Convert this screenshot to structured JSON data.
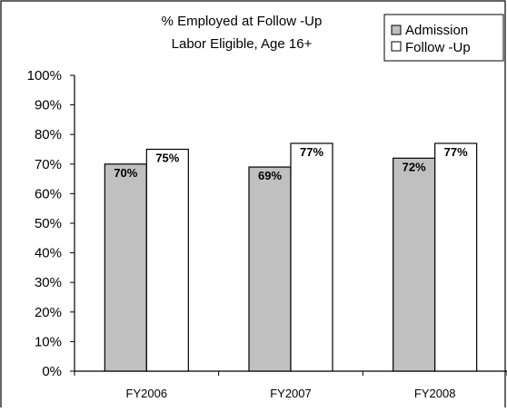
{
  "chart_data": {
    "type": "bar",
    "title": "% Employed at Follow -Up",
    "subtitle": "Labor Eligible, Age 16+",
    "categories": [
      "FY2006",
      "FY2007",
      "FY2008"
    ],
    "series": [
      {
        "name": "Admission",
        "values": [
          70,
          69,
          72
        ],
        "labels": [
          "70%",
          "69%",
          "72%"
        ],
        "color": "#c0c0c0"
      },
      {
        "name": "Follow -Up",
        "values": [
          75,
          77,
          77
        ],
        "labels": [
          "75%",
          "77%",
          "77%"
        ],
        "color": "#ffffff"
      }
    ],
    "ylim": [
      0,
      100
    ],
    "yticks": [
      "0%",
      "10%",
      "20%",
      "30%",
      "40%",
      "50%",
      "60%",
      "70%",
      "80%",
      "90%",
      "100%"
    ],
    "grid": false,
    "legend_position": "top-right",
    "xlabel": "",
    "ylabel": ""
  }
}
